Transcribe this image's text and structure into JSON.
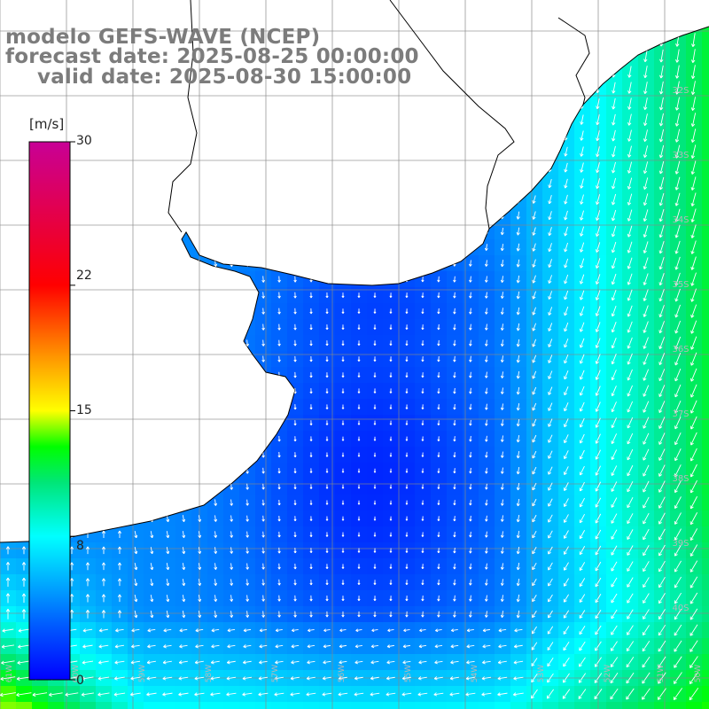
{
  "title": {
    "line1": "modelo GEFS-WAVE (NCEP)",
    "line2": "forecast date: 2025-08-25 00:00:00",
    "line3": "valid date: 2025-08-30 15:00:00"
  },
  "colorbar": {
    "unit": "[m/s]",
    "min": 0,
    "max": 30,
    "tick_labels": [
      "30",
      "22",
      "15",
      "8",
      "0"
    ],
    "tick_values": [
      30,
      22,
      15,
      8,
      0
    ],
    "colors": [
      "#0000ff",
      "#0066ff",
      "#00ccff",
      "#00ffff",
      "#00ff00",
      "#ffff00",
      "#ff9900",
      "#ff0000",
      "#cc0099"
    ]
  },
  "map": {
    "field": "wind speed with direction arrows",
    "region": "southern Brazil / Uruguay / Rio de la Plata coast",
    "lat_labels": [
      "32S",
      "33S",
      "34S",
      "35S",
      "36S",
      "37S",
      "38S",
      "39S",
      "40S"
    ],
    "lon_labels": [
      "61W",
      "60W",
      "59W",
      "58W",
      "57W",
      "56W",
      "55W",
      "54W",
      "53W",
      "52W",
      "51W",
      "50W"
    ],
    "grid_color": "#888888",
    "land_color": "#ffffff",
    "coast_color": "#000000",
    "arrow_color": "#ffffff"
  }
}
